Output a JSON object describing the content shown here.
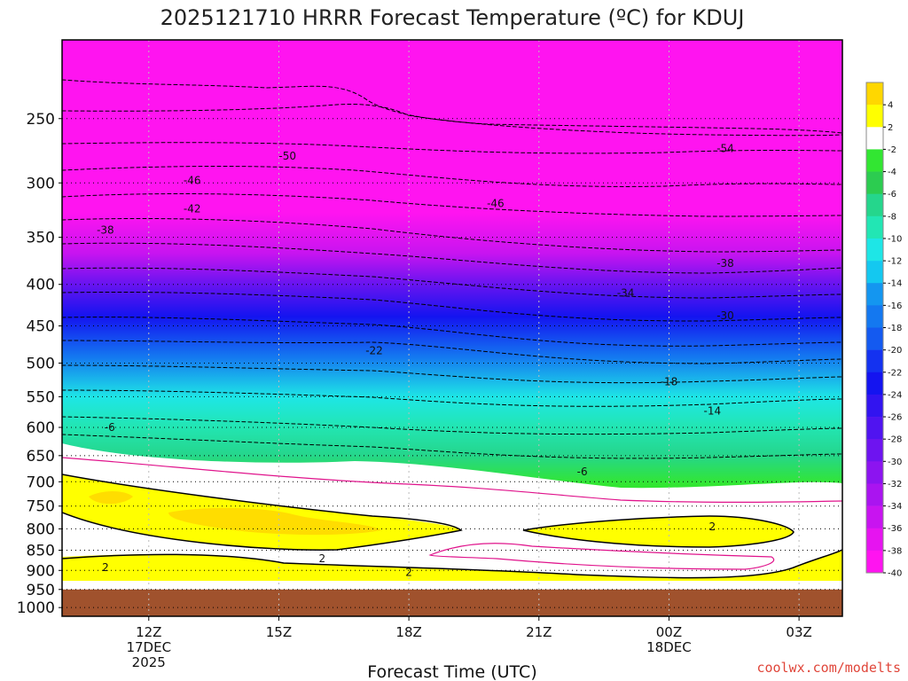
{
  "chart_data": {
    "type": "heatmap",
    "title": "2025121710 HRRR Forecast Temperature (ºC) for KDUJ",
    "xlabel": "Forecast Time (UTC)",
    "credit": "coolwx.com/modelts",
    "x_ticks": [
      {
        "line1": "12Z",
        "line2": "17DEC",
        "line3": "2025",
        "hour": 12
      },
      {
        "line1": "15Z",
        "line2": "",
        "line3": "",
        "hour": 15
      },
      {
        "line1": "18Z",
        "line2": "",
        "line3": "",
        "hour": 18
      },
      {
        "line1": "21Z",
        "line2": "",
        "line3": "",
        "hour": 21
      },
      {
        "line1": "00Z",
        "line2": "18DEC",
        "line3": "",
        "hour": 24
      },
      {
        "line1": "03Z",
        "line2": "",
        "line3": "",
        "hour": 27
      }
    ],
    "x_range_hours": [
      10,
      28
    ],
    "y_pressure_levels": [
      250,
      300,
      350,
      400,
      450,
      500,
      550,
      600,
      650,
      700,
      750,
      800,
      850,
      900,
      950,
      1000
    ],
    "y_range_hPa": [
      200,
      1025
    ],
    "ground_level_hPa": 950,
    "colorbar": {
      "ticks": [
        "4",
        "2",
        "-2",
        "-4",
        "-6",
        "-8",
        "-10",
        "-12",
        "-14",
        "-16",
        "-18",
        "-20",
        "-22",
        "-24",
        "-26",
        "-28",
        "-30",
        "-32",
        "-34",
        "-36",
        "-38",
        "-40"
      ],
      "colors": [
        "#ffd700",
        "#ffff00",
        "#ffffff",
        "#32e632",
        "#2ccc50",
        "#25d68c",
        "#22e6b4",
        "#1ee6e6",
        "#14c8f0",
        "#1496f0",
        "#1478f0",
        "#145af0",
        "#1432f0",
        "#1414f0",
        "#3214f0",
        "#5014f0",
        "#6e14f0",
        "#8c14f0",
        "#aa14f0",
        "#c814f0",
        "#e614f0",
        "#ff14f0"
      ]
    },
    "contour_labels": [
      {
        "text": "-50",
        "hour": 15.2,
        "p": 278
      },
      {
        "text": "-54",
        "hour": 25.3,
        "p": 272
      },
      {
        "text": "-46",
        "hour": 13.0,
        "p": 298
      },
      {
        "text": "-46",
        "hour": 20.0,
        "p": 318
      },
      {
        "text": "-42",
        "hour": 13.0,
        "p": 323
      },
      {
        "text": "-38",
        "hour": 11.0,
        "p": 343
      },
      {
        "text": "-38",
        "hour": 25.3,
        "p": 377
      },
      {
        "text": "-34",
        "hour": 23.0,
        "p": 410
      },
      {
        "text": "-30",
        "hour": 25.3,
        "p": 437
      },
      {
        "text": "-22",
        "hour": 17.2,
        "p": 483
      },
      {
        "text": "-18",
        "hour": 24.0,
        "p": 527
      },
      {
        "text": "-14",
        "hour": 25.0,
        "p": 573
      },
      {
        "text": "-6",
        "hour": 11.1,
        "p": 600
      },
      {
        "text": "-6",
        "hour": 22.0,
        "p": 680
      },
      {
        "text": "2",
        "hour": 25.0,
        "p": 795
      },
      {
        "text": "2",
        "hour": 16.0,
        "p": 870
      },
      {
        "text": "2",
        "hour": 11.0,
        "p": 893
      },
      {
        "text": "2",
        "hour": 18.0,
        "p": 905
      }
    ]
  }
}
